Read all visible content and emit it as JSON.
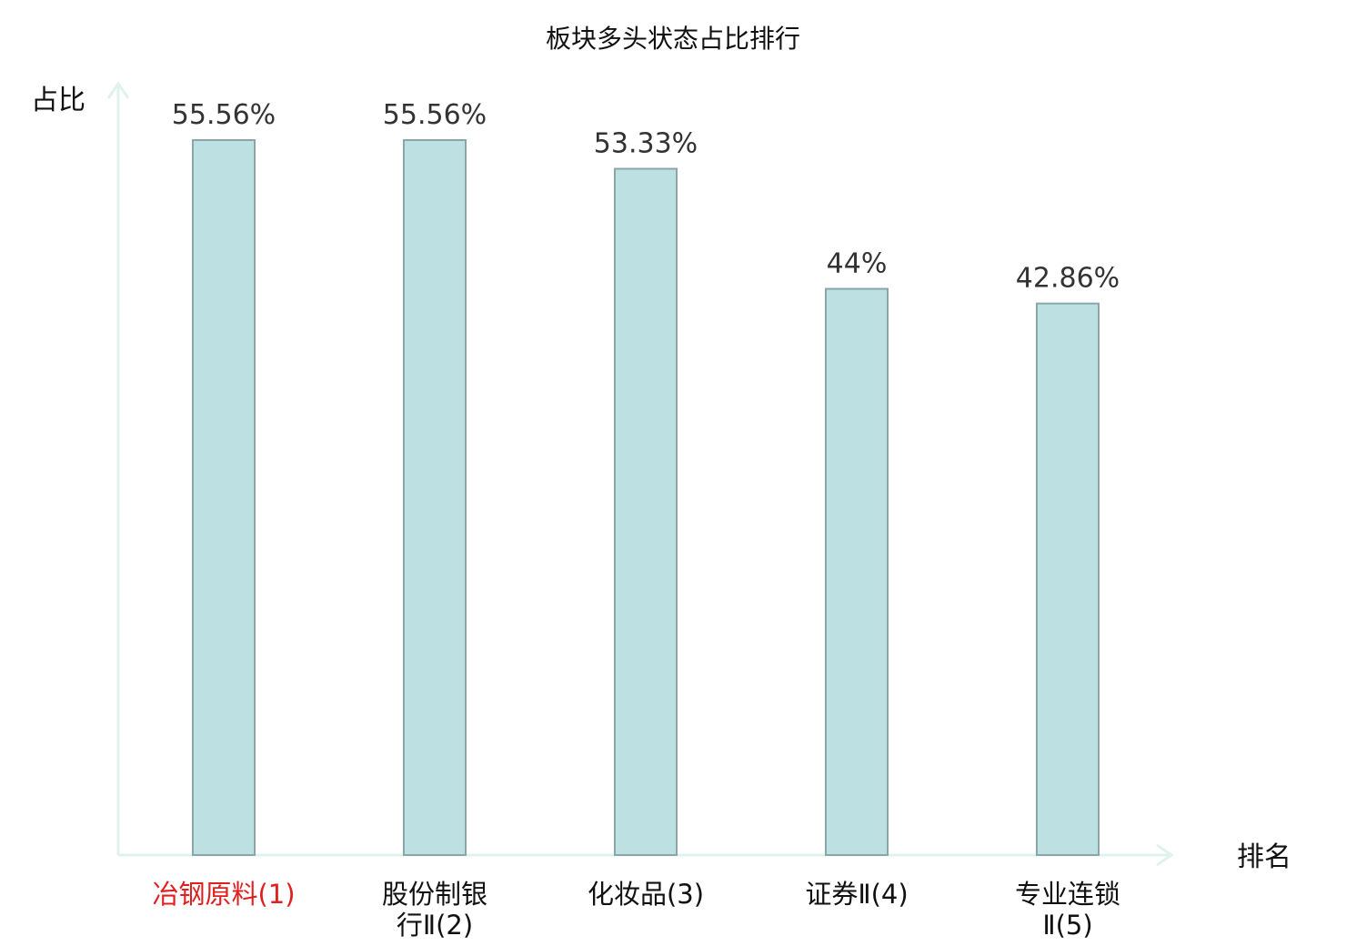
{
  "chart_data": {
    "type": "bar",
    "title": "板块多头状态占比排行",
    "ylabel": "占比",
    "xlabel": "排名",
    "categories": [
      {
        "lines": [
          "冶钢原料(1)"
        ],
        "highlight": true
      },
      {
        "lines": [
          "股份制银",
          "行Ⅱ(2)"
        ],
        "highlight": false
      },
      {
        "lines": [
          "化妆品(3)"
        ],
        "highlight": false
      },
      {
        "lines": [
          "证券Ⅱ(4)"
        ],
        "highlight": false
      },
      {
        "lines": [
          "专业连锁",
          "Ⅱ(5)"
        ],
        "highlight": false
      }
    ],
    "values": [
      55.56,
      55.56,
      53.33,
      44,
      42.86
    ],
    "value_labels": [
      "55.56%",
      "55.56%",
      "53.33%",
      "44%",
      "42.86%"
    ],
    "ylim": [
      0,
      55.56
    ],
    "grid": false,
    "colors": {
      "bar_fill": "#bde1e2",
      "bar_stroke": "#8aa6a8",
      "axis": "#e0f2ee",
      "highlight_label": "#e02020",
      "label": "#111111"
    }
  }
}
